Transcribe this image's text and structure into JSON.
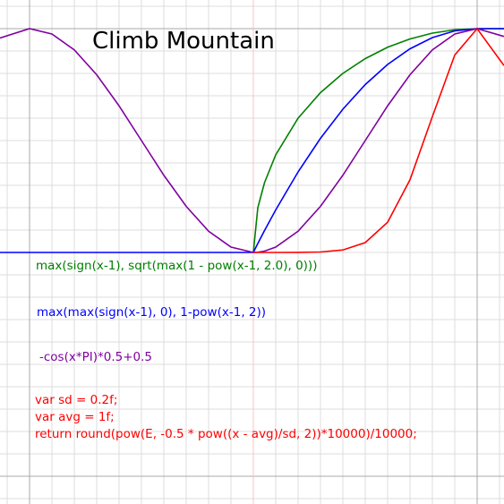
{
  "chart_data": {
    "type": "line",
    "title": "Climb Mountain",
    "x": [
      -0.132,
      0,
      0.1,
      0.2,
      0.3,
      0.4,
      0.5,
      0.6,
      0.7,
      0.8,
      0.9,
      1,
      1.02,
      1.05,
      1.1,
      1.2,
      1.3,
      1.4,
      1.5,
      1.6,
      1.7,
      1.8,
      1.9,
      2,
      2.12
    ],
    "series": [
      {
        "name": "max(sign(x-1), sqrt(max(1 - pow(x-1, 2.0), 0)))",
        "color": "#008000",
        "values": [
          null,
          null,
          null,
          null,
          null,
          null,
          null,
          null,
          null,
          null,
          null,
          0,
          0.2,
          0.312,
          0.436,
          0.6,
          0.714,
          0.8,
          0.866,
          0.917,
          0.954,
          0.98,
          0.995,
          1,
          1
        ]
      },
      {
        "name": "max(max(sign(x-1), 0), 1-pow(x-1, 2))",
        "color": "#0000ff",
        "values": [
          0,
          0,
          0,
          0,
          0,
          0,
          0,
          0,
          0,
          0,
          0,
          0,
          0.04,
          0.098,
          0.19,
          0.36,
          0.51,
          0.64,
          0.75,
          0.84,
          0.91,
          0.96,
          0.99,
          1,
          1
        ]
      },
      {
        "name": "-cos(x*PI)*0.5+0.5",
        "color": "#8000a0",
        "values": [
          0.958,
          1,
          0.976,
          0.905,
          0.794,
          0.655,
          0.5,
          0.345,
          0.206,
          0.095,
          0.024,
          0,
          0.001,
          0.006,
          0.024,
          0.095,
          0.206,
          0.345,
          0.5,
          0.655,
          0.794,
          0.905,
          0.976,
          1,
          0.965
        ]
      },
      {
        "name": "var sd = 0.2f;\nvar avg = 1f;\nreturn round(pow(E, -0.5 * pow((x - avg)/sd, 2))*10000)/10000;",
        "color": "#ff0000",
        "values": [
          null,
          null,
          null,
          null,
          null,
          null,
          null,
          null,
          null,
          null,
          null,
          0,
          0,
          0,
          0,
          0.0003,
          0.002,
          0.011,
          0.044,
          0.135,
          0.325,
          0.607,
          0.882,
          1,
          0.835
        ]
      }
    ],
    "xlim": [
      -0.132,
      2.12
    ],
    "ylim": [
      -1.124,
      1.128
    ],
    "xticks": [
      -0.1,
      0,
      0.1,
      0.2,
      0.3,
      0.4,
      0.5,
      0.6,
      0.7,
      0.8,
      0.9,
      1,
      1.1,
      1.2,
      1.3,
      1.4,
      1.5,
      1.6,
      1.7,
      1.8,
      1.9,
      2,
      2.1
    ],
    "yticks": [
      -1.1,
      -1,
      -0.9,
      -0.8,
      -0.7,
      -0.6,
      -0.5,
      -0.4,
      -0.3,
      -0.2,
      -0.1,
      0,
      0.1,
      0.2,
      0.3,
      0.4,
      0.5,
      0.6,
      0.7,
      0.8,
      0.9,
      1,
      1.1
    ],
    "major_xticks": [
      0,
      2
    ],
    "major_yticks": [
      -1,
      1
    ],
    "center_xtick": 1,
    "grid": true
  }
}
